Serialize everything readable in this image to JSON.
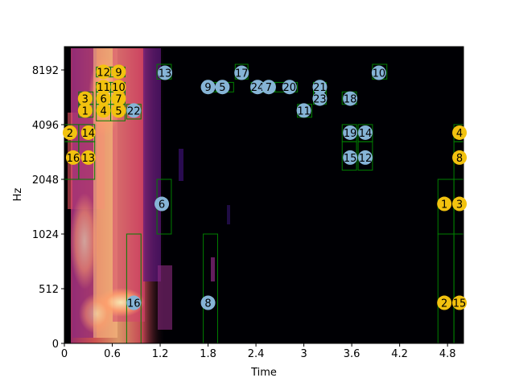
{
  "chart_data": {
    "type": "spectrogram",
    "xlabel": "Time",
    "ylabel": "Hz",
    "x_ticks": [
      "0",
      "0.6",
      "1.2",
      "1.8",
      "2.4",
      "3",
      "3.6",
      "4.2",
      "4.8"
    ],
    "y_ticks": [
      "0",
      "512",
      "1024",
      "2048",
      "4096",
      "8192"
    ],
    "xlim": [
      0,
      5.0
    ],
    "ylim": [
      0,
      11025
    ],
    "colormap": "magma",
    "box_color": "#008000",
    "blue_color": "#86B4D6",
    "yellow_color": "#F2C20F",
    "blue_markers": [
      {
        "label": "13",
        "t": 1.26,
        "hz": 7900,
        "f0": 7300,
        "f1": 8800,
        "t0": 1.16,
        "t1": 1.34
      },
      {
        "label": "9",
        "t": 1.8,
        "hz": 6600,
        "f0": 6200,
        "f1": 7000,
        "t0": 1.74,
        "t1": 1.9
      },
      {
        "label": "5",
        "t": 1.98,
        "hz": 6600,
        "f0": 6200,
        "f1": 7000,
        "t0": 1.9,
        "t1": 2.12
      },
      {
        "label": "17",
        "t": 2.22,
        "hz": 7900,
        "f0": 7300,
        "f1": 8800,
        "t0": 2.14,
        "t1": 2.3
      },
      {
        "label": "24",
        "t": 2.42,
        "hz": 6600,
        "f0": 6200,
        "f1": 7000,
        "t0": 2.34,
        "t1": 2.5
      },
      {
        "label": "7",
        "t": 2.56,
        "hz": 6600,
        "f0": 6200,
        "f1": 7000,
        "t0": 2.48,
        "t1": 2.64
      },
      {
        "label": "20",
        "t": 2.82,
        "hz": 6600,
        "f0": 6200,
        "f1": 7000,
        "t0": 2.64,
        "t1": 2.92
      },
      {
        "label": "21",
        "t": 3.2,
        "hz": 6600,
        "f0": 6200,
        "f1": 7000,
        "t0": 3.12,
        "t1": 3.28
      },
      {
        "label": "23",
        "t": 3.2,
        "hz": 5700,
        "f0": 5300,
        "f1": 6200,
        "t0": 3.12,
        "t1": 3.28
      },
      {
        "label": "18",
        "t": 3.58,
        "hz": 5700,
        "f0": 5300,
        "f1": 6200,
        "t0": 3.48,
        "t1": 3.66
      },
      {
        "label": "10",
        "t": 3.94,
        "hz": 7900,
        "f0": 7300,
        "f1": 8800,
        "t0": 3.86,
        "t1": 4.04
      },
      {
        "label": "11",
        "t": 3.0,
        "hz": 4900,
        "f0": 4500,
        "f1": 5300,
        "t0": 2.92,
        "t1": 3.1
      },
      {
        "label": "22",
        "t": 0.87,
        "hz": 4900,
        "f0": 4400,
        "f1": 5300,
        "t0": 0.78,
        "t1": 0.96
      },
      {
        "label": "19",
        "t": 3.58,
        "hz": 3700,
        "f0": 3300,
        "f1": 4100,
        "t0": 3.48,
        "t1": 3.66
      },
      {
        "label": "14",
        "t": 3.77,
        "hz": 3700,
        "f0": 3300,
        "f1": 4100,
        "t0": 3.68,
        "t1": 3.86
      },
      {
        "label": "15",
        "t": 3.58,
        "hz": 2700,
        "f0": 2300,
        "f1": 3300,
        "t0": 3.48,
        "t1": 3.66
      },
      {
        "label": "12",
        "t": 3.77,
        "hz": 2700,
        "f0": 2300,
        "f1": 3300,
        "t0": 3.68,
        "t1": 3.86
      },
      {
        "label": "6",
        "t": 1.22,
        "hz": 1500,
        "f0": 1024,
        "f1": 2048,
        "t0": 1.16,
        "t1": 1.34
      },
      {
        "label": "16",
        "t": 0.87,
        "hz": 380,
        "f0": 0,
        "f1": 1024,
        "t0": 0.78,
        "t1": 0.96
      },
      {
        "label": "8",
        "t": 1.8,
        "hz": 380,
        "f0": 0,
        "f1": 1024,
        "t0": 1.74,
        "t1": 1.92
      }
    ],
    "yellow_markers": [
      {
        "label": "12",
        "t": 0.49,
        "hz": 8000,
        "f0": 7500,
        "f1": 8500,
        "t0": 0.4,
        "t1": 0.58
      },
      {
        "label": "9",
        "t": 0.68,
        "hz": 8000,
        "f0": 7500,
        "f1": 8500,
        "t0": 0.58,
        "t1": 0.76
      },
      {
        "label": "11",
        "t": 0.49,
        "hz": 6600,
        "f0": 6200,
        "f1": 7000,
        "t0": 0.4,
        "t1": 0.58
      },
      {
        "label": "10",
        "t": 0.68,
        "hz": 6600,
        "f0": 6200,
        "f1": 7000,
        "t0": 0.58,
        "t1": 0.76
      },
      {
        "label": "3",
        "t": 0.26,
        "hz": 5700,
        "f0": 5300,
        "f1": 6200,
        "t0": 0.18,
        "t1": 0.36
      },
      {
        "label": "6",
        "t": 0.49,
        "hz": 5700,
        "f0": 5300,
        "f1": 6200,
        "t0": 0.4,
        "t1": 0.58
      },
      {
        "label": "7",
        "t": 0.68,
        "hz": 5700,
        "f0": 5300,
        "f1": 6200,
        "t0": 0.58,
        "t1": 0.76
      },
      {
        "label": "1",
        "t": 0.26,
        "hz": 4900,
        "f0": 4500,
        "f1": 5300,
        "t0": 0.18,
        "t1": 0.36
      },
      {
        "label": "4",
        "t": 0.49,
        "hz": 4900,
        "f0": 4300,
        "f1": 5300,
        "t0": 0.4,
        "t1": 0.58
      },
      {
        "label": "5",
        "t": 0.68,
        "hz": 4900,
        "f0": 4300,
        "f1": 5300,
        "t0": 0.58,
        "t1": 0.76
      },
      {
        "label": "2",
        "t": 0.07,
        "hz": 3700,
        "f0": 3300,
        "f1": 4100,
        "t0": 0.0,
        "t1": 0.18
      },
      {
        "label": "14",
        "t": 0.3,
        "hz": 3700,
        "f0": 3300,
        "f1": 4100,
        "t0": 0.18,
        "t1": 0.38
      },
      {
        "label": "16",
        "t": 0.11,
        "hz": 2700,
        "f0": 2048,
        "f1": 3300,
        "t0": 0.0,
        "t1": 0.18
      },
      {
        "label": "13",
        "t": 0.3,
        "hz": 2700,
        "f0": 2048,
        "f1": 3300,
        "t0": 0.18,
        "t1": 0.38
      },
      {
        "label": "4",
        "t": 4.95,
        "hz": 3700,
        "f0": 3300,
        "f1": 4100,
        "t0": 4.88,
        "t1": 5.06
      },
      {
        "label": "8",
        "t": 4.95,
        "hz": 2700,
        "f0": 2048,
        "f1": 3300,
        "t0": 4.88,
        "t1": 5.06
      },
      {
        "label": "1",
        "t": 4.76,
        "hz": 1500,
        "f0": 1024,
        "f1": 2048,
        "t0": 4.68,
        "t1": 4.88
      },
      {
        "label": "3",
        "t": 4.95,
        "hz": 1500,
        "f0": 1024,
        "f1": 2048,
        "t0": 4.88,
        "t1": 5.06
      },
      {
        "label": "2",
        "t": 4.76,
        "hz": 380,
        "f0": 0,
        "f1": 1024,
        "t0": 4.68,
        "t1": 4.88
      },
      {
        "label": "15",
        "t": 4.95,
        "hz": 380,
        "f0": 0,
        "f1": 1024,
        "t0": 4.88,
        "t1": 5.06
      }
    ]
  }
}
